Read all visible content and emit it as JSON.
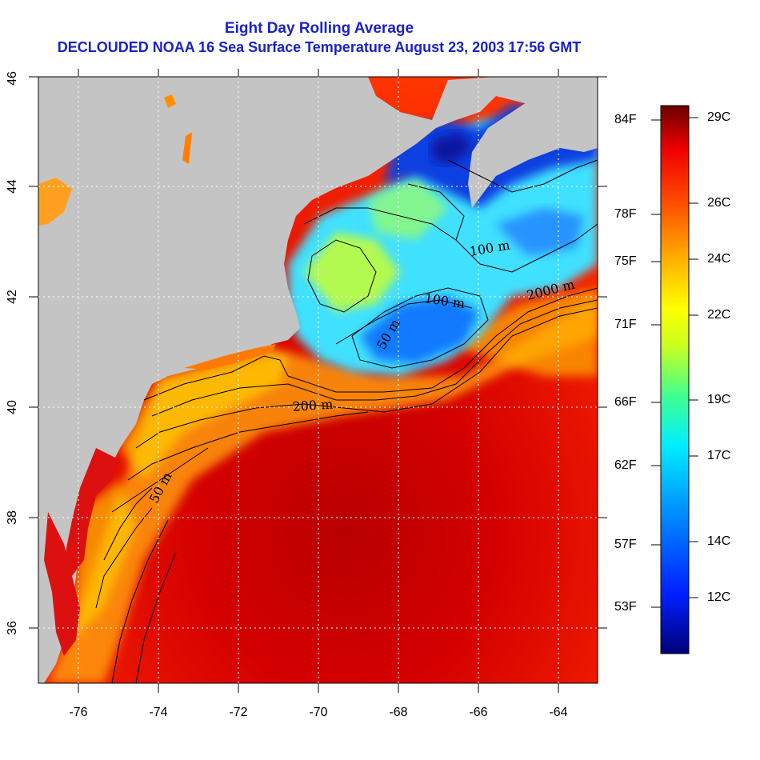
{
  "title_line1": "Eight Day Rolling Average",
  "title_line2": "DECLOUDED NOAA 16 Sea Surface Temperature August 23, 2003 17:56 GMT",
  "map": {
    "lon_range": [
      -77,
      -63
    ],
    "lat_range": [
      35,
      46
    ],
    "x_ticks": [
      "-76",
      "-74",
      "-72",
      "-70",
      "-68",
      "-66",
      "-64"
    ],
    "y_ticks": [
      "36",
      "38",
      "40",
      "42",
      "44",
      "46"
    ],
    "depth_labels": [
      "100 m",
      "2000 m",
      "100 m",
      "50 m",
      "200 m",
      "50 m"
    ],
    "land_color": "#c4c4c4",
    "grid": "dotted white"
  },
  "colorbar": {
    "fahrenheit_labels": [
      "84F",
      "78F",
      "75F",
      "71F",
      "66F",
      "62F",
      "57F",
      "53F"
    ],
    "celsius_labels": [
      "29C",
      "26C",
      "24C",
      "22C",
      "19C",
      "17C",
      "14C",
      "12C"
    ],
    "colors": [
      "#000080",
      "#0020ff",
      "#00a0ff",
      "#00ffff",
      "#40ff80",
      "#c0ff20",
      "#ffff00",
      "#ffb000",
      "#ff6000",
      "#ff1000",
      "#c00000",
      "#700000"
    ]
  }
}
